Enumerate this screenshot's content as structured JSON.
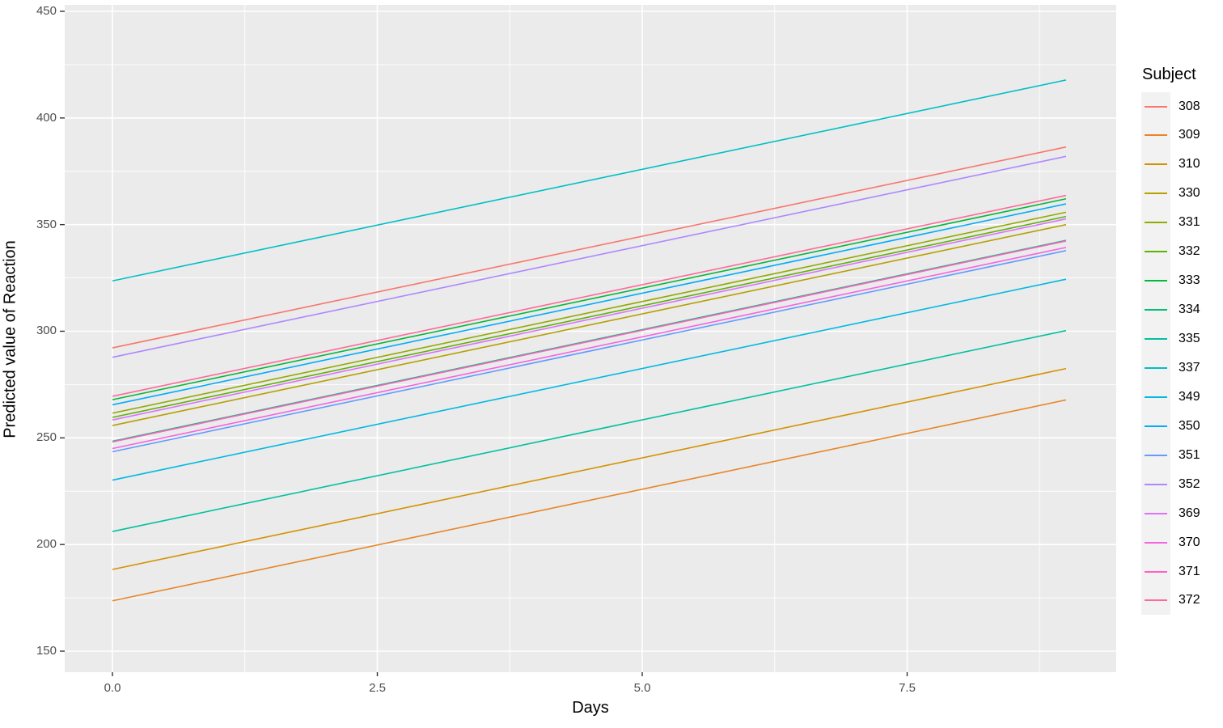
{
  "chart_data": {
    "type": "line",
    "title": "",
    "xlabel": "Days",
    "ylabel": "Predicted value of Reaction",
    "legend_title": "Subject",
    "legend_position": "right",
    "grid": "major-and-minor-white-on-grey-panel",
    "x_range": [
      0,
      9
    ],
    "xlim_px_expansion": "ggplot-default",
    "ylim": [
      140,
      453
    ],
    "x_ticks": [
      {
        "value": 0.0,
        "label": "0.0"
      },
      {
        "value": 2.5,
        "label": "2.5"
      },
      {
        "value": 5.0,
        "label": "5.0"
      },
      {
        "value": 7.5,
        "label": "7.5"
      }
    ],
    "x_minor_ticks": [
      1.25,
      3.75,
      6.25,
      8.75
    ],
    "y_ticks": [
      {
        "value": 150,
        "label": "150"
      },
      {
        "value": 200,
        "label": "200"
      },
      {
        "value": 250,
        "label": "250"
      },
      {
        "value": 300,
        "label": "300"
      },
      {
        "value": 350,
        "label": "350"
      },
      {
        "value": 400,
        "label": "400"
      },
      {
        "value": 450,
        "label": "450"
      }
    ],
    "y_minor_ticks": [
      175,
      225,
      275,
      325,
      375,
      425
    ],
    "slope_per_day": 10.467,
    "series": [
      {
        "subject": "308",
        "color": "#F8766D",
        "y_at_day0": 292.2,
        "y_at_day9": 386.4
      },
      {
        "subject": "309",
        "color": "#E88526",
        "y_at_day0": 173.6,
        "y_at_day9": 267.8
      },
      {
        "subject": "310",
        "color": "#D39200",
        "y_at_day0": 188.3,
        "y_at_day9": 282.5
      },
      {
        "subject": "330",
        "color": "#B79F00",
        "y_at_day0": 255.8,
        "y_at_day9": 350.0
      },
      {
        "subject": "331",
        "color": "#93AA00",
        "y_at_day0": 261.6,
        "y_at_day9": 355.8
      },
      {
        "subject": "332",
        "color": "#5EB300",
        "y_at_day0": 259.6,
        "y_at_day9": 353.8
      },
      {
        "subject": "333",
        "color": "#00BA38",
        "y_at_day0": 267.9,
        "y_at_day9": 362.1
      },
      {
        "subject": "334",
        "color": "#00BF74",
        "y_at_day0": 248.4,
        "y_at_day9": 342.6
      },
      {
        "subject": "335",
        "color": "#00C19F",
        "y_at_day0": 206.1,
        "y_at_day9": 300.3
      },
      {
        "subject": "337",
        "color": "#00BFC4",
        "y_at_day0": 323.6,
        "y_at_day9": 417.8
      },
      {
        "subject": "349",
        "color": "#00B9E3",
        "y_at_day0": 230.2,
        "y_at_day9": 324.4
      },
      {
        "subject": "350",
        "color": "#00ADFA",
        "y_at_day0": 265.5,
        "y_at_day9": 359.7
      },
      {
        "subject": "351",
        "color": "#619CFF",
        "y_at_day0": 243.5,
        "y_at_day9": 337.8
      },
      {
        "subject": "352",
        "color": "#AE87FF",
        "y_at_day0": 287.8,
        "y_at_day9": 382.0
      },
      {
        "subject": "369",
        "color": "#DB72FB",
        "y_at_day0": 258.4,
        "y_at_day9": 352.7
      },
      {
        "subject": "370",
        "color": "#F564E3",
        "y_at_day0": 245.0,
        "y_at_day9": 339.3
      },
      {
        "subject": "371",
        "color": "#FF61C3",
        "y_at_day0": 248.1,
        "y_at_day9": 342.3
      },
      {
        "subject": "372",
        "color": "#FF699C",
        "y_at_day0": 269.5,
        "y_at_day9": 363.7
      }
    ],
    "colors": {
      "panel_background": "#EBEBEB",
      "gridline": "#FFFFFF",
      "legend_key_background": "#F2F2F2",
      "tick_mark": "#333333",
      "tick_label_text": "#4D4D4D",
      "axis_title_text": "#000000"
    }
  }
}
